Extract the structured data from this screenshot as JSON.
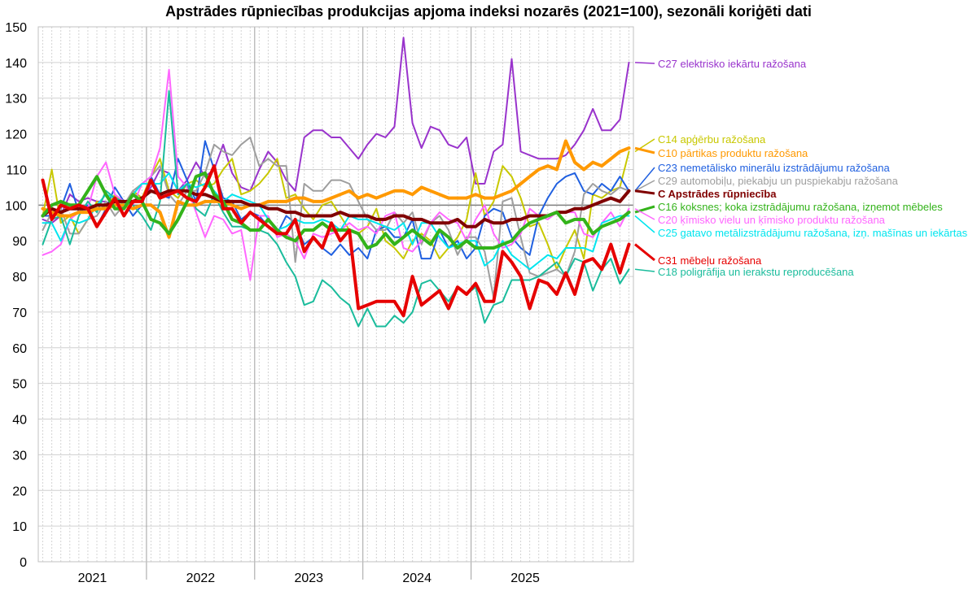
{
  "chart_data": {
    "type": "line",
    "title": "Apstrādes rūpniecības produkcijas apjoma indeksi nozarēs (2021=100), sezonāli koriģēti dati",
    "xlabel": "",
    "ylabel": "",
    "ylim": [
      0,
      150
    ],
    "yticks": [
      0,
      10,
      20,
      30,
      40,
      50,
      60,
      70,
      80,
      90,
      100,
      110,
      120,
      130,
      140,
      150
    ],
    "x_ticklabels": [
      "2021",
      "2022",
      "2023",
      "2024",
      "2025"
    ],
    "x_start": "2021-01",
    "x_end": "2025-06",
    "reference_line": 100,
    "grid": true,
    "legend_position": "right",
    "series": [
      {
        "name": "C27 elektrisko iekārtu ražošana",
        "color": "#9933cc",
        "width": 2,
        "values": [
          96,
          95,
          97,
          103,
          101,
          102,
          101,
          101,
          99,
          100,
          104,
          102,
          105,
          110,
          109,
          104,
          107,
          112,
          108,
          110,
          117,
          109,
          105,
          104,
          110,
          115,
          112,
          107,
          104,
          119,
          121,
          121,
          119,
          119,
          116,
          113,
          117,
          120,
          119,
          122,
          147,
          123,
          116,
          122,
          121,
          117,
          116,
          119,
          106,
          106,
          115,
          117,
          141,
          115,
          114,
          113,
          113,
          113,
          114,
          117,
          121,
          127,
          121,
          121,
          124,
          140
        ]
      },
      {
        "name": "C14 apģērbu ražošana",
        "color": "#c8c800",
        "width": 2,
        "values": [
          97,
          110,
          95,
          97,
          92,
          96,
          101,
          99,
          103,
          100,
          104,
          102,
          108,
          113,
          104,
          102,
          106,
          107,
          105,
          106,
          110,
          113,
          103,
          104,
          106,
          109,
          113,
          102,
          103,
          99,
          96,
          100,
          101,
          97,
          93,
          92,
          94,
          99,
          90,
          88,
          85,
          90,
          92,
          90,
          85,
          88,
          91,
          96,
          109,
          97,
          101,
          111,
          108,
          102,
          94,
          95,
          89,
          82,
          88,
          93,
          85,
          103,
          102,
          104,
          105,
          115
        ]
      },
      {
        "name": "C10 pārtikas produktu ražošana",
        "color": "#ff9900",
        "width": 4,
        "values": [
          99,
          98,
          97,
          97,
          98,
          98,
          99,
          99,
          100,
          100,
          99,
          100,
          100,
          98,
          91,
          101,
          100,
          100,
          101,
          101,
          101,
          100,
          99,
          100,
          100,
          101,
          101,
          101,
          102,
          102,
          101,
          101,
          102,
          103,
          104,
          102,
          103,
          102,
          103,
          104,
          104,
          103,
          105,
          104,
          103,
          102,
          102,
          102,
          103,
          102,
          102,
          103,
          104,
          106,
          108,
          110,
          111,
          110,
          118,
          112,
          110,
          112,
          111,
          113,
          115,
          116
        ]
      },
      {
        "name": "C23 nemetālisko minerālu izstrādājumu ražošana",
        "color": "#2060e0",
        "width": 2,
        "values": [
          97,
          97,
          99,
          106,
          98,
          100,
          94,
          99,
          105,
          101,
          97,
          100,
          108,
          103,
          102,
          113,
          107,
          101,
          118,
          110,
          102,
          101,
          96,
          98,
          97,
          94,
          92,
          97,
          95,
          89,
          91,
          88,
          86,
          89,
          86,
          88,
          85,
          93,
          94,
          91,
          91,
          96,
          85,
          85,
          93,
          88,
          90,
          85,
          88,
          97,
          99,
          98,
          91,
          88,
          86,
          97,
          102,
          106,
          108,
          109,
          104,
          103,
          106,
          104,
          108,
          104
        ]
      },
      {
        "name": "C29 automobiļu, piekabju un puspiekabju ražošana",
        "color": "#9e9e9e",
        "width": 2,
        "values": [
          93,
          98,
          99,
          92,
          92,
          96,
          97,
          101,
          97,
          100,
          104,
          106,
          108,
          111,
          103,
          100,
          104,
          104,
          109,
          117,
          115,
          114,
          117,
          119,
          111,
          113,
          111,
          111,
          84,
          106,
          104,
          104,
          107,
          107,
          106,
          101,
          96,
          93,
          93,
          98,
          95,
          98,
          89,
          95,
          97,
          93,
          86,
          91,
          91,
          87,
          74,
          101,
          102,
          91,
          81,
          80,
          81,
          82,
          80,
          87,
          103,
          106,
          104,
          103,
          105,
          104
        ]
      },
      {
        "name": "C Apstrādes rūpniecība",
        "color": "#800000",
        "width": 4,
        "values": [
          97,
          99,
          98,
          99,
          99,
          99,
          100,
          100,
          101,
          101,
          101,
          102,
          104,
          103,
          104,
          104,
          104,
          103,
          103,
          102,
          101,
          101,
          101,
          100,
          100,
          99,
          99,
          98,
          98,
          97,
          97,
          97,
          97,
          98,
          97,
          97,
          97,
          96,
          96,
          97,
          97,
          96,
          96,
          95,
          95,
          95,
          96,
          94,
          94,
          96,
          95,
          95,
          96,
          96,
          97,
          97,
          97,
          98,
          98,
          99,
          99,
          100,
          101,
          102,
          101,
          104
        ]
      },
      {
        "name": "C16 koksnes; koka izstrādājumu ražošana, izņemot mēbeles",
        "color": "#33b31a",
        "width": 4,
        "values": [
          97,
          100,
          101,
          100,
          100,
          104,
          108,
          103,
          99,
          99,
          103,
          101,
          96,
          95,
          92,
          96,
          101,
          108,
          109,
          103,
          101,
          96,
          95,
          93,
          93,
          96,
          93,
          91,
          90,
          93,
          93,
          95,
          93,
          93,
          93,
          92,
          88,
          89,
          92,
          89,
          91,
          93,
          91,
          89,
          93,
          91,
          88,
          90,
          88,
          88,
          88,
          89,
          90,
          93,
          95,
          96,
          97,
          98,
          95,
          96,
          96,
          92,
          94,
          95,
          96,
          98
        ]
      },
      {
        "name": "C20 ķīmisko vielu un ķīmisko produktu ražošana",
        "color": "#ff66ff",
        "width": 2,
        "values": [
          86,
          87,
          89,
          96,
          98,
          99,
          108,
          112,
          103,
          101,
          100,
          106,
          108,
          116,
          138,
          108,
          105,
          98,
          91,
          97,
          96,
          92,
          93,
          79,
          97,
          97,
          91,
          92,
          90,
          85,
          92,
          91,
          92,
          93,
          95,
          93,
          94,
          92,
          97,
          98,
          88,
          87,
          90,
          95,
          98,
          96,
          95,
          90,
          96,
          100,
          92,
          88,
          89,
          92,
          99,
          97,
          96,
          98,
          98,
          98,
          92,
          91,
          95,
          98,
          94,
          99
        ]
      },
      {
        "name": "C25 gatavo metālizstrādājumu ražošana, izņ. mašīnas un iekārtas",
        "color": "#00e5ee",
        "width": 2,
        "values": [
          95,
          95,
          90,
          96,
          95,
          96,
          100,
          103,
          102,
          100,
          103,
          106,
          106,
          106,
          109,
          104,
          106,
          105,
          106,
          104,
          101,
          103,
          102,
          101,
          100,
          96,
          93,
          94,
          96,
          95,
          95,
          96,
          95,
          93,
          97,
          96,
          96,
          95,
          94,
          93,
          95,
          89,
          95,
          95,
          91,
          88,
          89,
          90,
          90,
          83,
          85,
          90,
          86,
          84,
          82,
          84,
          86,
          85,
          88,
          88,
          88,
          87,
          95,
          96,
          97,
          97
        ]
      },
      {
        "name": "C31 mēbeļu ražošana",
        "color": "#e60000",
        "width": 4,
        "values": [
          107,
          96,
          100,
          99,
          100,
          99,
          94,
          98,
          102,
          97,
          101,
          101,
          107,
          102,
          103,
          104,
          102,
          101,
          105,
          111,
          99,
          99,
          95,
          98,
          96,
          94,
          92,
          92,
          96,
          87,
          91,
          88,
          95,
          90,
          93,
          71,
          72,
          73,
          73,
          73,
          69,
          80,
          72,
          74,
          76,
          71,
          77,
          75,
          78,
          73,
          73,
          87,
          84,
          80,
          71,
          79,
          78,
          75,
          81,
          75,
          84,
          85,
          82,
          89,
          81,
          89
        ]
      },
      {
        "name": "C18 poligrāfija un ierakstu reproducēšana",
        "color": "#1abc9c",
        "width": 2,
        "values": [
          89,
          96,
          97,
          89,
          97,
          101,
          98,
          104,
          102,
          101,
          100,
          97,
          93,
          101,
          132,
          103,
          106,
          99,
          97,
          103,
          98,
          94,
          94,
          93,
          93,
          92,
          89,
          84,
          80,
          72,
          73,
          79,
          77,
          74,
          72,
          66,
          71,
          66,
          66,
          69,
          67,
          70,
          78,
          79,
          76,
          73,
          77,
          75,
          77,
          67,
          72,
          73,
          79,
          79,
          79,
          80,
          82,
          84,
          80,
          85,
          84,
          76,
          82,
          85,
          78,
          82
        ]
      }
    ]
  }
}
